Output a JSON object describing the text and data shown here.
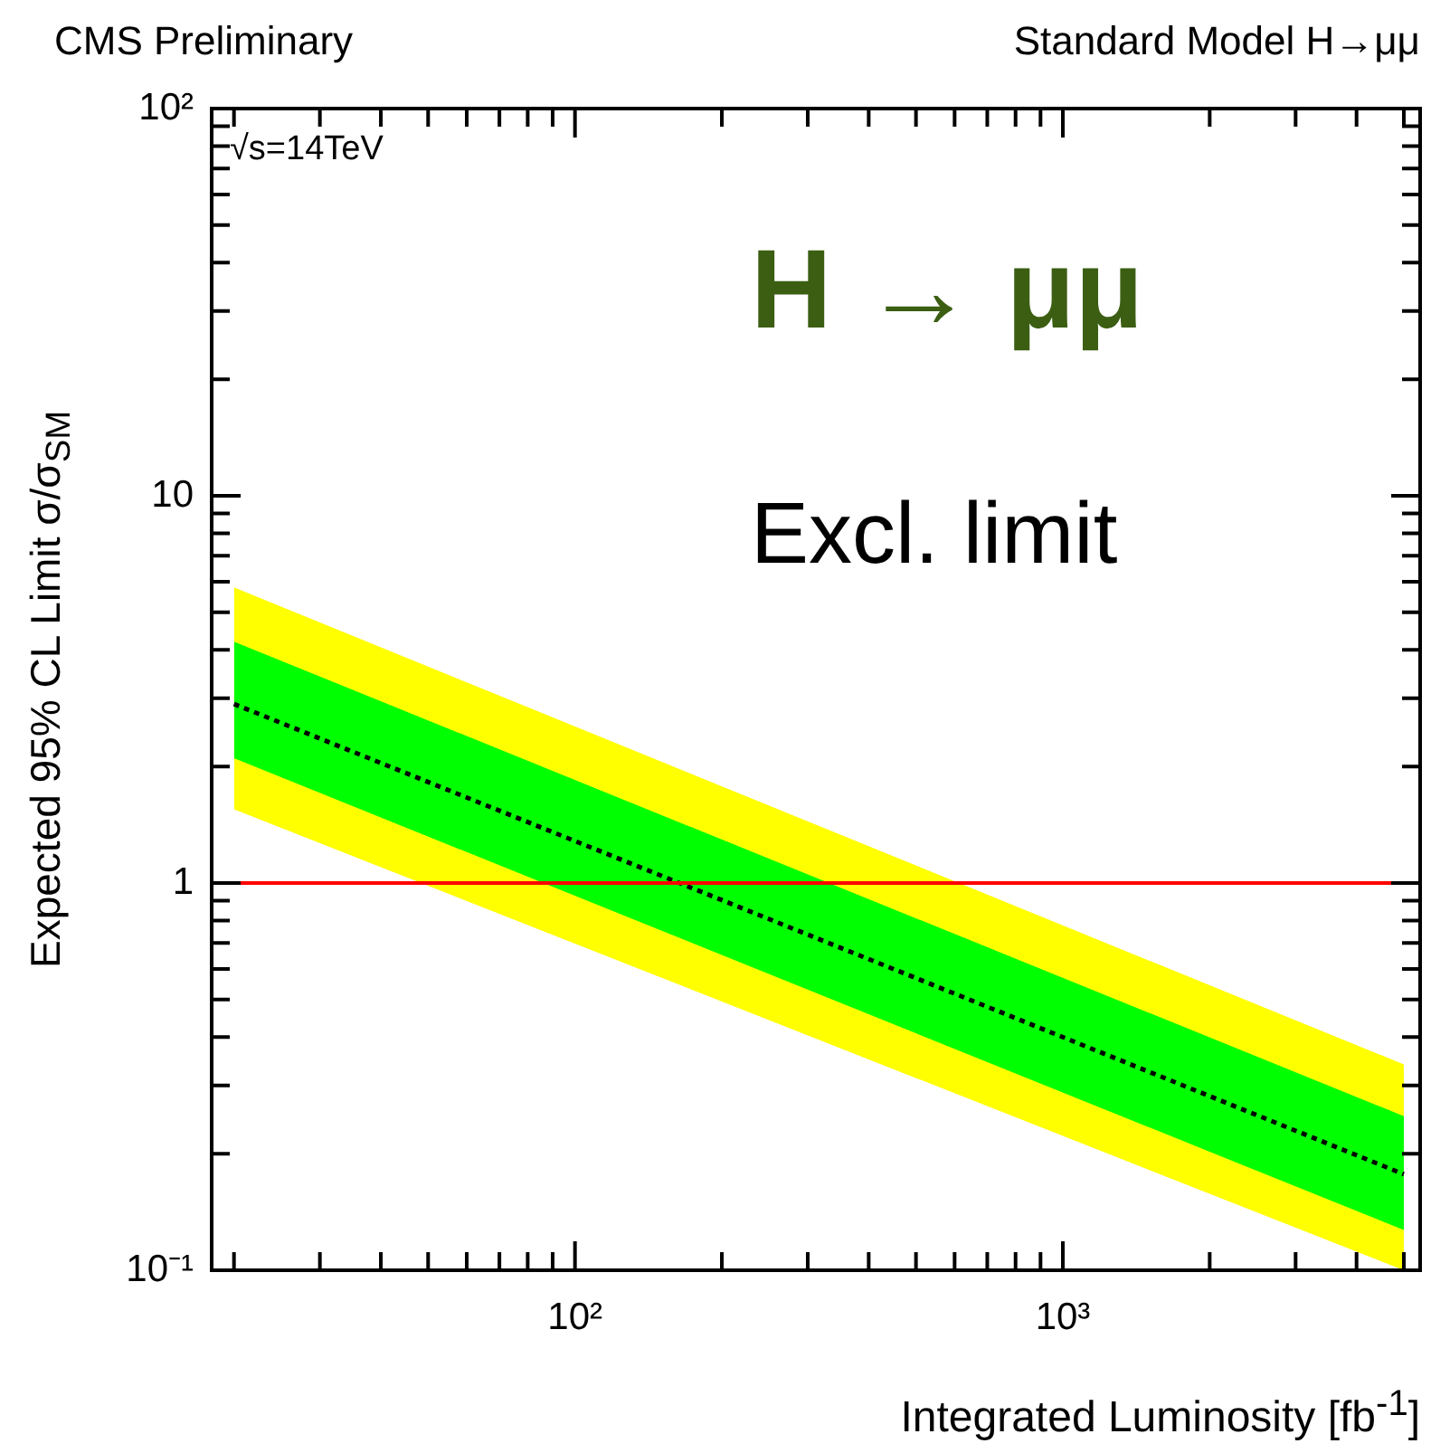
{
  "chart_data": {
    "type": "line",
    "title": "CMS Preliminary",
    "subtitle": "Standard Model H→μμ",
    "xlabel": "Integrated Luminosity [fb$^{-1}$]",
    "ylabel": "Expected 95% CL Limit σ/σ$_{SM}$",
    "annotations": [
      "√s=14TeV",
      "H → μμ",
      "Excl. limit"
    ],
    "log": "xy",
    "grid": false,
    "legend": false,
    "x": [
      20,
      5000
    ],
    "xlim": [
      18,
      5400
    ],
    "xticks": [
      {
        "value": 20,
        "label": null
      },
      {
        "value": 30,
        "label": null
      },
      {
        "value": 40,
        "label": null
      },
      {
        "value": 50,
        "label": null
      },
      {
        "value": 60,
        "label": null
      },
      {
        "value": 70,
        "label": null
      },
      {
        "value": 80,
        "label": null
      },
      {
        "value": 90,
        "label": null
      },
      {
        "value": 100,
        "label": "10²"
      },
      {
        "value": 200,
        "label": null
      },
      {
        "value": 300,
        "label": null
      },
      {
        "value": 400,
        "label": null
      },
      {
        "value": 500,
        "label": null
      },
      {
        "value": 600,
        "label": null
      },
      {
        "value": 700,
        "label": null
      },
      {
        "value": 800,
        "label": null
      },
      {
        "value": 900,
        "label": null
      },
      {
        "value": 1000,
        "label": "10³"
      },
      {
        "value": 2000,
        "label": null
      },
      {
        "value": 3000,
        "label": null
      },
      {
        "value": 4000,
        "label": null
      },
      {
        "value": 5000,
        "label": null
      }
    ],
    "ylim": [
      0.1,
      100
    ],
    "yticks": [
      {
        "value": 0.1,
        "label": "10⁻¹"
      },
      {
        "value": 0.2,
        "label": null
      },
      {
        "value": 0.3,
        "label": null
      },
      {
        "value": 0.4,
        "label": null
      },
      {
        "value": 0.5,
        "label": null
      },
      {
        "value": 0.6,
        "label": null
      },
      {
        "value": 0.7,
        "label": null
      },
      {
        "value": 0.8,
        "label": null
      },
      {
        "value": 0.9,
        "label": null
      },
      1,
      {
        "value": 2,
        "label": null
      },
      {
        "value": 3,
        "label": null
      },
      {
        "value": 4,
        "label": null
      },
      {
        "value": 5,
        "label": null
      },
      {
        "value": 6,
        "label": null
      },
      {
        "value": 7,
        "label": null
      },
      {
        "value": 8,
        "label": null
      },
      {
        "value": 9,
        "label": null
      },
      10,
      {
        "value": 20,
        "label": null
      },
      {
        "value": 30,
        "label": null
      },
      {
        "value": 40,
        "label": null
      },
      {
        "value": 50,
        "label": null
      },
      {
        "value": 60,
        "label": null
      },
      {
        "value": 70,
        "label": null
      },
      {
        "value": 80,
        "label": null
      },
      {
        "value": 90,
        "label": null
      },
      {
        "value": 100,
        "label": "10²"
      }
    ],
    "series": [
      {
        "color": "#ffff00",
        "values": [
          null,
          null
        ],
        "lower": [
          1.55,
          0.1
        ],
        "upper": [
          5.8,
          0.34
        ]
      },
      {
        "color": "#00ff00",
        "values": [
          null,
          null
        ],
        "lower": [
          2.1,
          0.127
        ],
        "upper": [
          4.2,
          0.25
        ]
      },
      {
        "color": "#000000",
        "line_style": "dotted",
        "marker": "none",
        "values": [
          2.9,
          0.177
        ]
      }
    ],
    "ref_lines": [
      {
        "axis": "y",
        "value": 1,
        "color": "#ff0000",
        "line_style": "solid"
      }
    ]
  }
}
